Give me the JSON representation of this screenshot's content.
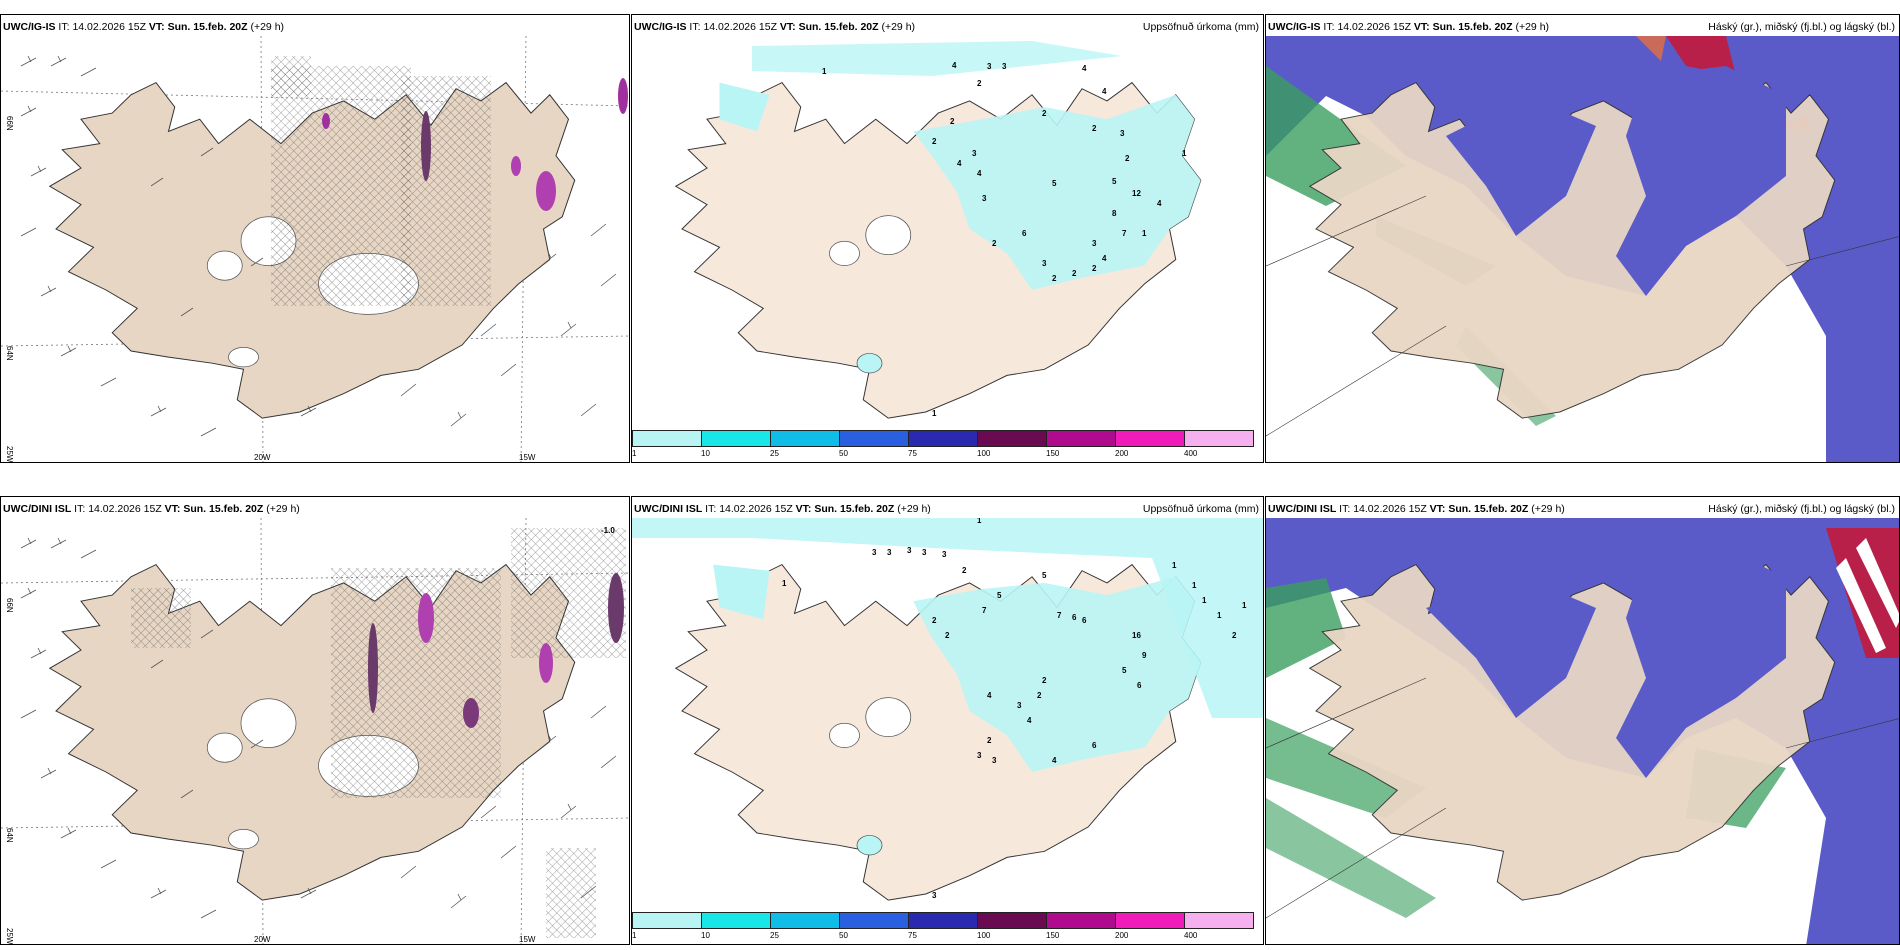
{
  "rows": [
    {
      "model": "UWC/IG-IS",
      "it_label": "IT:",
      "it_value": "14.02.2026 15Z",
      "vt_label": "VT:",
      "vt_value": "Sun. 15.feb. 20Z",
      "lead": "(+29 h)",
      "wind_extra_label": "",
      "precip_numbers": [
        "1",
        "4",
        "3",
        "3",
        "2",
        "4",
        "4",
        "2",
        "2",
        "3",
        "2",
        "2",
        "3",
        "2",
        "5",
        "5",
        "12",
        "8",
        "1",
        "4",
        "7",
        "3",
        "2",
        "2",
        "3",
        "4",
        "2",
        "4",
        "3",
        "4",
        "6",
        "2",
        "1",
        "1"
      ]
    },
    {
      "model": "UWC/DINI ISL",
      "it_label": "IT:",
      "it_value": "14.02.2026 15Z",
      "vt_label": "VT:",
      "vt_value": "Sun. 15.feb. 20Z",
      "lead": "(+29 h)",
      "wind_extra_label": "-1.0",
      "precip_numbers": [
        "1",
        "3",
        "3",
        "3",
        "3",
        "3",
        "1",
        "2",
        "2",
        "2",
        "7",
        "5",
        "5",
        "7",
        "6",
        "6",
        "16",
        "9",
        "5",
        "6",
        "1",
        "1",
        "1",
        "1",
        "1",
        "2",
        "4",
        "3",
        "2",
        "4",
        "2",
        "2",
        "3",
        "3",
        "4",
        "6",
        "3"
      ]
    }
  ],
  "precip_panel_title": "Uppsöfnuð úrkoma (mm)",
  "cloud_panel_title": "Háský (gr.), miðský (fj.bl.) og lágský (bl.)",
  "wind_axis_labels": {
    "lat_66": "66N",
    "lat_64": "64N",
    "lon_25": "25W",
    "lon_20": "20W",
    "lon_15": "15W"
  },
  "colorbar": {
    "ticks": [
      "1",
      "10",
      "25",
      "50",
      "75",
      "100",
      "150",
      "200",
      "400"
    ],
    "colors": [
      "#b8f4f4",
      "#19e6e6",
      "#10bde6",
      "#2a60e0",
      "#2a2ab0",
      "#6a0a50",
      "#b00b8f",
      "#f01bb8",
      "#f6b0ef"
    ]
  },
  "colors": {
    "land": "#e8d6c4",
    "precip_light": "#b9f5f5",
    "cloud_high": "#5a5bc8",
    "cloud_red": "#b8204a",
    "cloud_green": "#3a9f5f"
  }
}
